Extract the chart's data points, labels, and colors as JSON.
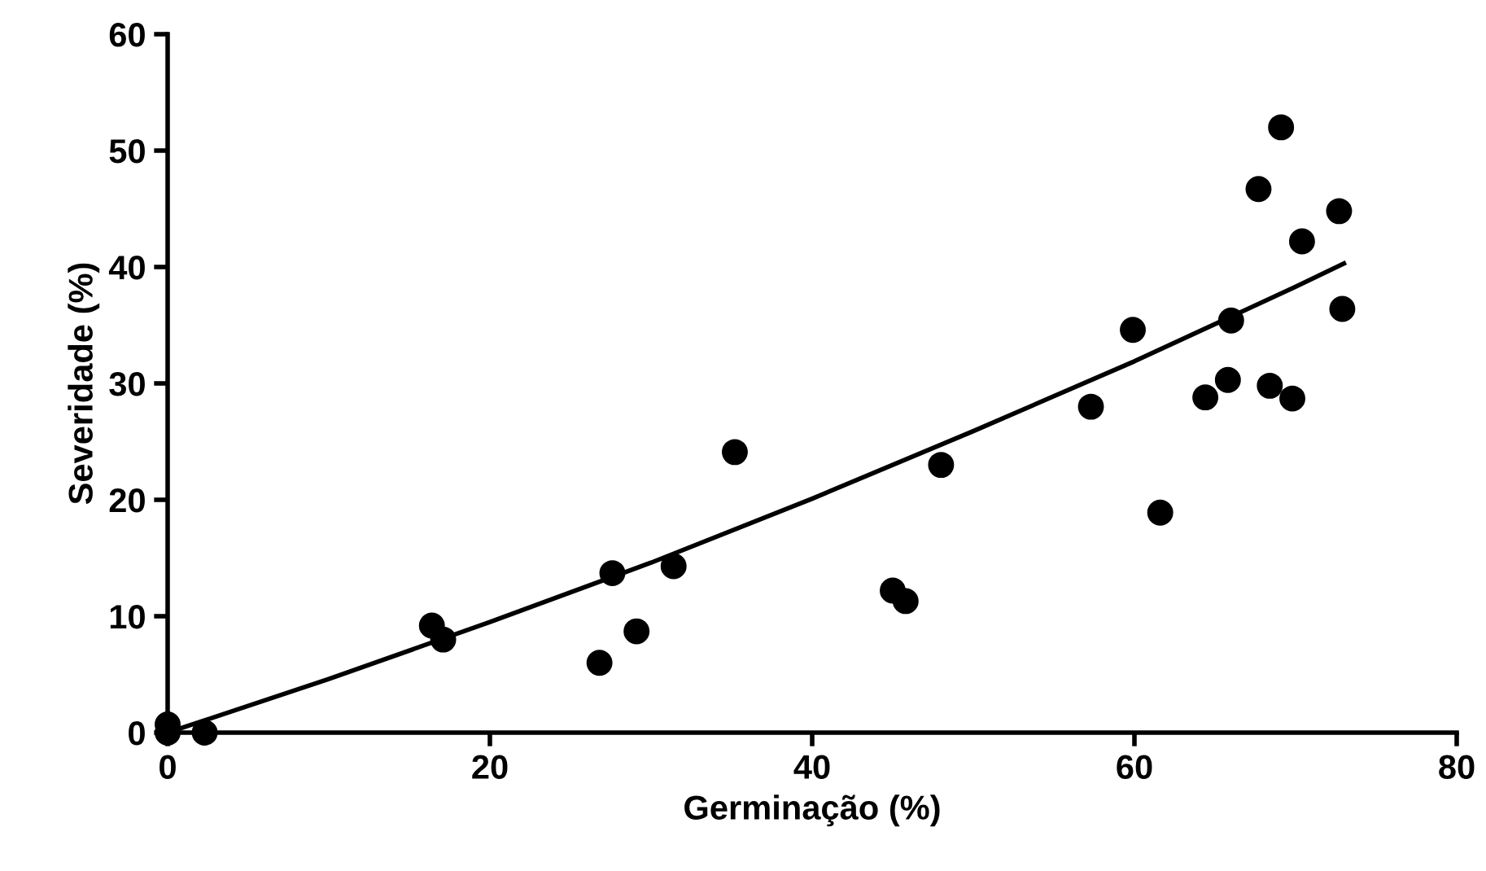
{
  "chart_data": {
    "type": "scatter",
    "xlabel": "Germinação (%)",
    "ylabel": "Severidade (%)",
    "xlim": [
      0,
      80
    ],
    "xticks": [
      0,
      20,
      40,
      60,
      80
    ],
    "ylim": [
      0,
      60
    ],
    "yticks": [
      0,
      10,
      20,
      30,
      40,
      50,
      60
    ],
    "grid": false,
    "legend": false,
    "series": [
      {
        "marker": "circle",
        "color": "#000000",
        "x": [
          0,
          0,
          2.3,
          16.4,
          17.1,
          26.8,
          27.6,
          29.1,
          31.4,
          35.2,
          45,
          45.8,
          48,
          57.3,
          59.9,
          61.6,
          64.4,
          65.8,
          66,
          67.7,
          68.4,
          69.1,
          69.8,
          70.4,
          72.7,
          72.9
        ],
        "values": [
          0,
          0.7,
          0,
          9.2,
          8,
          6,
          13.7,
          8.7,
          14.3,
          24.1,
          12.2,
          11.3,
          23,
          28,
          34.6,
          18.9,
          28.8,
          30.3,
          35.4,
          46.7,
          29.8,
          52,
          28.7,
          42.2,
          44.8,
          36.4
        ]
      },
      {
        "type": "line",
        "marker": "none",
        "color": "#000000",
        "line_style": "solid",
        "x": [
          0,
          10,
          20,
          30,
          40,
          50,
          60,
          70,
          73
        ],
        "values": [
          0,
          4.6,
          9.5,
          14.6,
          20.1,
          25.9,
          31.9,
          38.3,
          40.3
        ]
      }
    ]
  }
}
